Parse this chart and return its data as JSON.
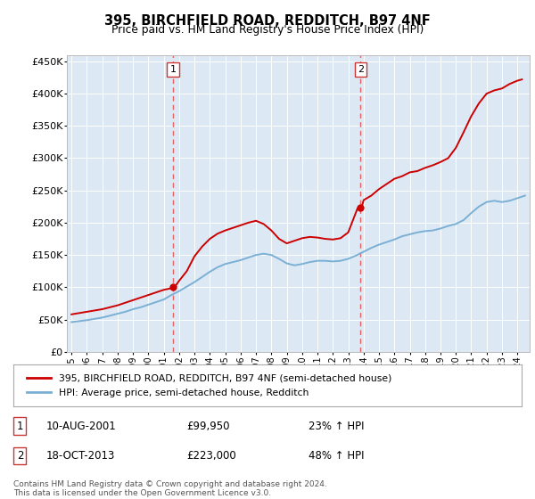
{
  "title1": "395, BIRCHFIELD ROAD, REDDITCH, B97 4NF",
  "title2": "Price paid vs. HM Land Registry's House Price Index (HPI)",
  "legend_line1": "395, BIRCHFIELD ROAD, REDDITCH, B97 4NF (semi-detached house)",
  "legend_line2": "HPI: Average price, semi-detached house, Redditch",
  "footnote": "Contains HM Land Registry data © Crown copyright and database right 2024.\nThis data is licensed under the Open Government Licence v3.0.",
  "transactions": [
    {
      "num": 1,
      "date": "10-AUG-2001",
      "price": "£99,950",
      "hpi": "23% ↑ HPI",
      "year": 2001.6
    },
    {
      "num": 2,
      "date": "18-OCT-2013",
      "price": "£223,000",
      "hpi": "48% ↑ HPI",
      "year": 2013.8
    }
  ],
  "transaction_prices": [
    99950,
    223000
  ],
  "background_color": "#dce9f5",
  "line_color_red": "#cc0000",
  "line_color_blue": "#7bafd4",
  "vline_color": "#e86060",
  "marker_color": "#cc0000",
  "ylim": [
    0,
    460000
  ],
  "yticks": [
    0,
    50000,
    100000,
    150000,
    200000,
    250000,
    300000,
    350000,
    400000,
    450000
  ],
  "xlim_start": 1994.7,
  "xlim_end": 2024.8,
  "hpi_years": [
    1995,
    1995.5,
    1996,
    1996.5,
    1997,
    1997.5,
    1998,
    1998.5,
    1999,
    1999.5,
    2000,
    2000.5,
    2001,
    2001.5,
    2002,
    2002.5,
    2003,
    2003.5,
    2004,
    2004.5,
    2005,
    2005.5,
    2006,
    2006.5,
    2007,
    2007.5,
    2008,
    2008.5,
    2009,
    2009.5,
    2010,
    2010.5,
    2011,
    2011.5,
    2012,
    2012.5,
    2013,
    2013.5,
    2014,
    2014.5,
    2015,
    2015.5,
    2016,
    2016.5,
    2017,
    2017.5,
    2018,
    2018.5,
    2019,
    2019.5,
    2020,
    2020.5,
    2021,
    2021.5,
    2022,
    2022.5,
    2023,
    2023.5,
    2024,
    2024.5
  ],
  "hpi_values": [
    46000,
    47500,
    49000,
    51000,
    53000,
    56000,
    59000,
    62000,
    66000,
    69000,
    73000,
    77000,
    81000,
    88000,
    94000,
    101000,
    108000,
    116000,
    124000,
    131000,
    136000,
    139000,
    142000,
    146000,
    150000,
    152000,
    150000,
    144000,
    137000,
    134000,
    136000,
    139000,
    141000,
    141000,
    140000,
    141000,
    144000,
    149000,
    155000,
    161000,
    166000,
    170000,
    174000,
    179000,
    182000,
    185000,
    187000,
    188000,
    191000,
    195000,
    198000,
    204000,
    215000,
    225000,
    232000,
    234000,
    232000,
    234000,
    238000,
    242000
  ],
  "property_years": [
    1995,
    1995.5,
    1996,
    1996.5,
    1997,
    1997.5,
    1998,
    1998.5,
    1999,
    1999.5,
    2000,
    2000.5,
    2001,
    2001.4,
    2001.7,
    2002,
    2002.5,
    2003,
    2003.5,
    2004,
    2004.5,
    2005,
    2005.5,
    2006,
    2006.5,
    2007,
    2007.5,
    2008,
    2008.5,
    2009,
    2009.5,
    2010,
    2010.5,
    2011,
    2011.5,
    2012,
    2012.5,
    2013,
    2013.6,
    2013.9,
    2014,
    2014.5,
    2015,
    2015.5,
    2016,
    2016.5,
    2017,
    2017.5,
    2018,
    2018.5,
    2019,
    2019.5,
    2020,
    2020.5,
    2021,
    2021.5,
    2022,
    2022.5,
    2023,
    2023.5,
    2024,
    2024.3
  ],
  "property_values": [
    58000,
    60000,
    62000,
    64000,
    66000,
    69000,
    72000,
    76000,
    80000,
    84000,
    88000,
    92000,
    96000,
    98000,
    100000,
    110000,
    125000,
    148000,
    163000,
    175000,
    183000,
    188000,
    192000,
    196000,
    200000,
    203000,
    198000,
    188000,
    175000,
    168000,
    172000,
    176000,
    178000,
    177000,
    175000,
    174000,
    176000,
    185000,
    222000,
    226000,
    235000,
    242000,
    252000,
    260000,
    268000,
    272000,
    278000,
    280000,
    285000,
    289000,
    294000,
    300000,
    316000,
    340000,
    365000,
    385000,
    400000,
    405000,
    408000,
    415000,
    420000,
    422000
  ]
}
